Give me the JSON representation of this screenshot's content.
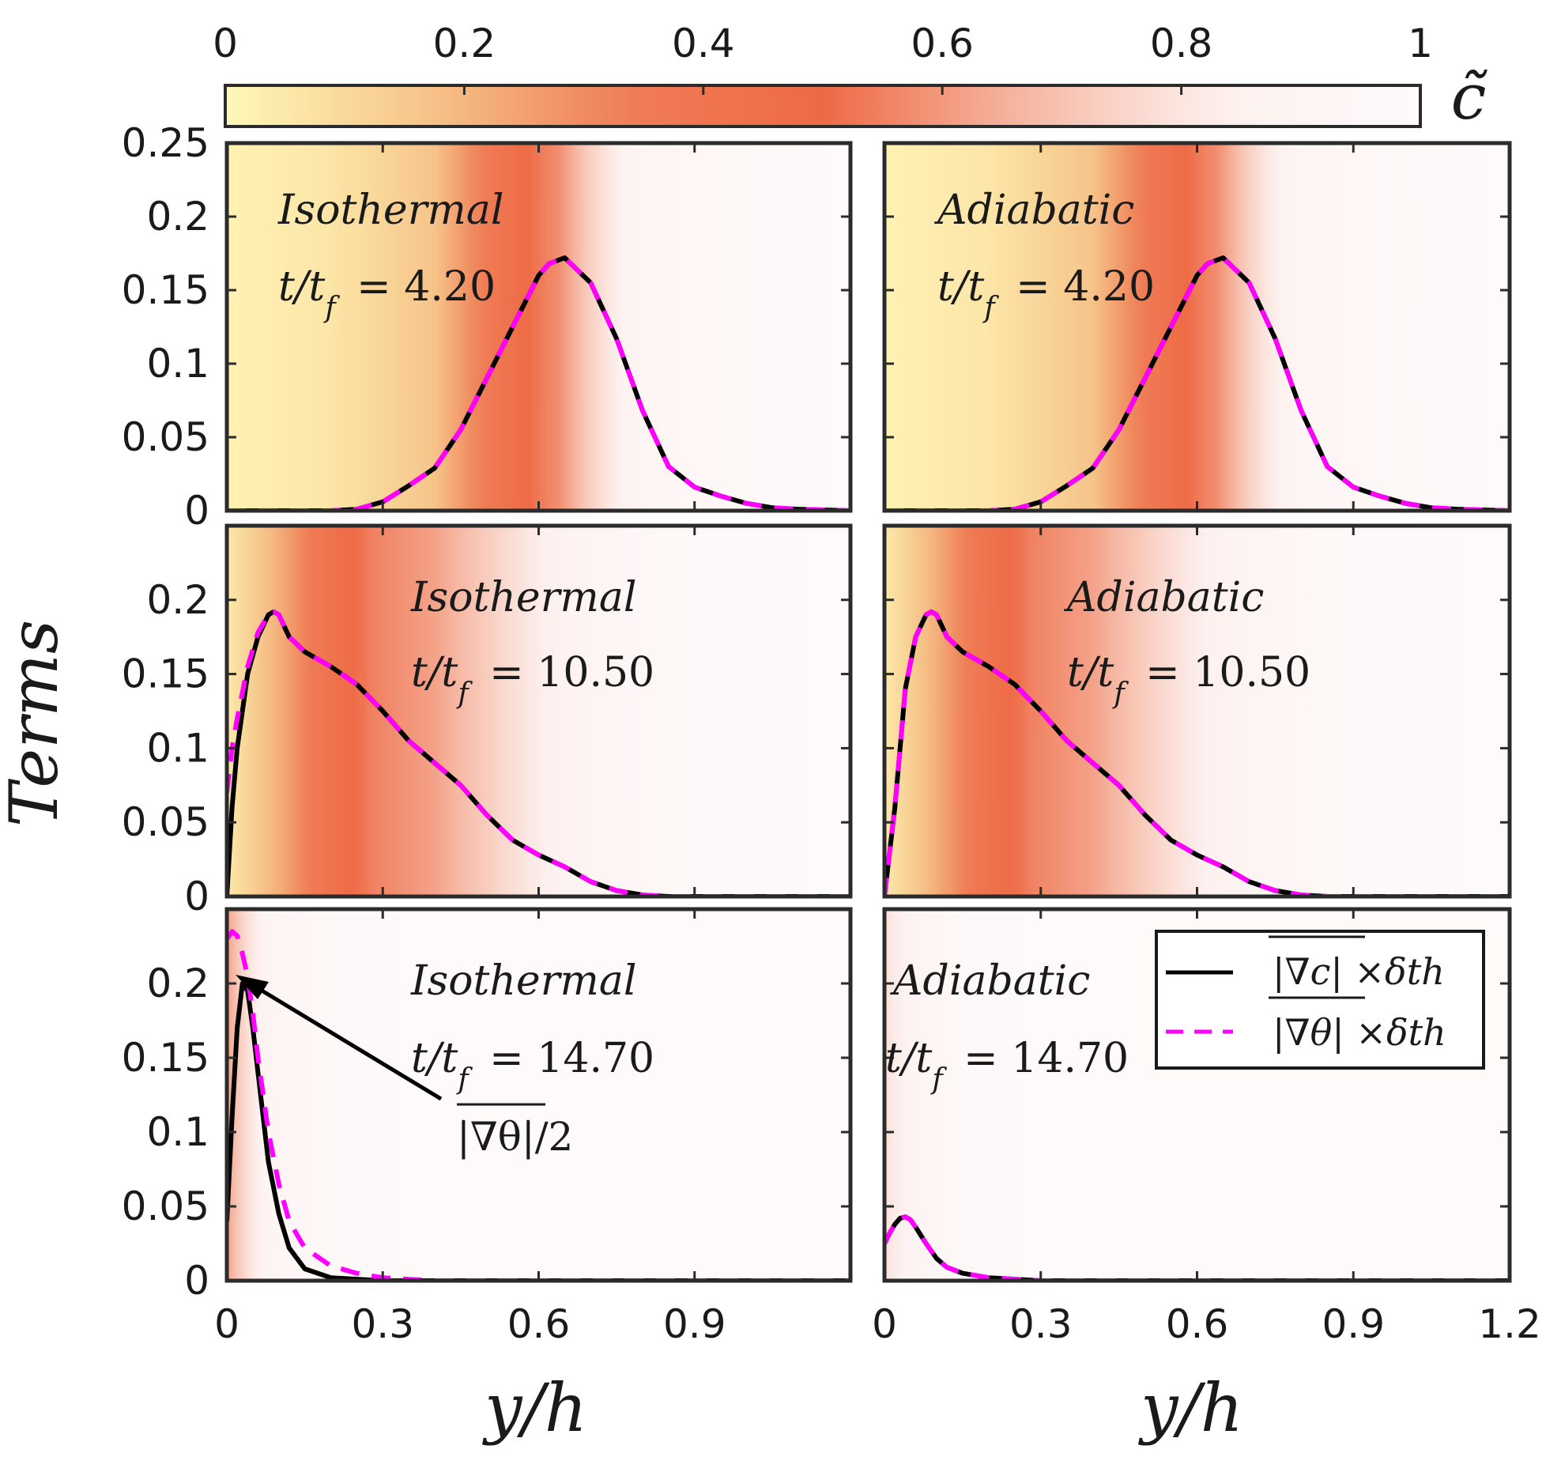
{
  "chart_data": {
    "type": "line",
    "colorbar": {
      "label": "c̃",
      "ticks": [
        "0",
        "0.2",
        "0.4",
        "0.6",
        "0.8",
        "1"
      ],
      "range": [
        0,
        1
      ],
      "colors": [
        "#fff8b8",
        "#f6c58a",
        "#ef7d56",
        "#ee6a45",
        "#f6b8a3",
        "#fdf1ef",
        "#fefafa"
      ]
    },
    "ylabel": "Terms",
    "xlabel": "y/h",
    "xlim": [
      0,
      1.2
    ],
    "ylim": [
      0,
      0.25
    ],
    "x_ticks": [
      "0",
      "0.3",
      "0.6",
      "0.9",
      "1.2"
    ],
    "x_ticks_left": [
      "0",
      "0.3",
      "0.6",
      "0.9"
    ],
    "y_ticks_top": [
      "0",
      "0.05",
      "0.1",
      "0.15",
      "0.2",
      "0.25"
    ],
    "y_ticks": [
      "0",
      "0.05",
      "0.1",
      "0.15",
      "0.2"
    ],
    "legend": {
      "placement": "top-right of bottom-right panel",
      "entries": [
        {
          "label": "|∇c| ×δth",
          "color": "#000000",
          "style": "solid"
        },
        {
          "label": "|∇θ| ×δth",
          "color": "#ff00ff",
          "style": "dashed"
        }
      ]
    },
    "annotation": {
      "text": "|∇θ|/2",
      "x": 0.03,
      "y": 0.205,
      "panel": "iso3"
    },
    "panels": [
      {
        "id": "iso1",
        "case": "Isothermal",
        "time_label": "t/t",
        "time_sub": "f",
        "time_value": "= 4.20",
        "background_c": [
          [
            0,
            0.02
          ],
          [
            0.2,
            0.06
          ],
          [
            0.4,
            0.17
          ],
          [
            0.5,
            0.35
          ],
          [
            0.6,
            0.53
          ],
          [
            0.64,
            0.58
          ],
          [
            0.7,
            0.74
          ],
          [
            0.8,
            0.92
          ],
          [
            1.2,
            1.0
          ]
        ],
        "series": [
          {
            "name": "|∇c| ×δth",
            "color": "#000000",
            "style": "solid",
            "x": [
              0,
              0.1,
              0.2,
              0.25,
              0.3,
              0.35,
              0.4,
              0.45,
              0.5,
              0.55,
              0.6,
              0.62,
              0.65,
              0.7,
              0.75,
              0.8,
              0.85,
              0.9,
              0.95,
              1.0,
              1.05,
              1.1,
              1.2
            ],
            "y": [
              0,
              0,
              0,
              0.001,
              0.006,
              0.017,
              0.029,
              0.055,
              0.09,
              0.125,
              0.16,
              0.168,
              0.172,
              0.155,
              0.117,
              0.068,
              0.03,
              0.016,
              0.01,
              0.005,
              0.002,
              0.001,
              0
            ]
          },
          {
            "name": "|∇θ| ×δth",
            "color": "#ff00ff",
            "style": "dashed",
            "x": [
              0,
              0.1,
              0.2,
              0.25,
              0.3,
              0.35,
              0.4,
              0.45,
              0.5,
              0.55,
              0.6,
              0.62,
              0.65,
              0.7,
              0.75,
              0.8,
              0.85,
              0.9,
              0.95,
              1.0,
              1.05,
              1.1,
              1.2
            ],
            "y": [
              0,
              0,
              0,
              0.001,
              0.006,
              0.017,
              0.029,
              0.055,
              0.09,
              0.125,
              0.16,
              0.168,
              0.172,
              0.155,
              0.117,
              0.068,
              0.03,
              0.016,
              0.01,
              0.005,
              0.002,
              0.001,
              0
            ]
          }
        ]
      },
      {
        "id": "adi1",
        "case": "Adiabatic",
        "time_label": "t/t",
        "time_sub": "f",
        "time_value": "= 4.20",
        "background_c": [
          [
            0,
            0.02
          ],
          [
            0.2,
            0.06
          ],
          [
            0.4,
            0.17
          ],
          [
            0.5,
            0.35
          ],
          [
            0.6,
            0.53
          ],
          [
            0.64,
            0.58
          ],
          [
            0.7,
            0.74
          ],
          [
            0.8,
            0.92
          ],
          [
            1.2,
            1.0
          ]
        ],
        "series": [
          {
            "name": "|∇c| ×δth",
            "color": "#000000",
            "style": "solid",
            "x": [
              0,
              0.1,
              0.2,
              0.25,
              0.3,
              0.35,
              0.4,
              0.45,
              0.5,
              0.55,
              0.6,
              0.62,
              0.65,
              0.7,
              0.75,
              0.8,
              0.85,
              0.9,
              0.95,
              1.0,
              1.05,
              1.1,
              1.2
            ],
            "y": [
              0,
              0,
              0,
              0.001,
              0.006,
              0.017,
              0.029,
              0.055,
              0.09,
              0.125,
              0.16,
              0.168,
              0.172,
              0.155,
              0.117,
              0.068,
              0.03,
              0.016,
              0.01,
              0.005,
              0.002,
              0.001,
              0
            ]
          },
          {
            "name": "|∇θ| ×δth",
            "color": "#ff00ff",
            "style": "dashed",
            "x": [
              0,
              0.1,
              0.2,
              0.25,
              0.3,
              0.35,
              0.4,
              0.45,
              0.5,
              0.55,
              0.6,
              0.62,
              0.65,
              0.7,
              0.75,
              0.8,
              0.85,
              0.9,
              0.95,
              1.0,
              1.05,
              1.1,
              1.2
            ],
            "y": [
              0,
              0,
              0,
              0.001,
              0.006,
              0.017,
              0.029,
              0.055,
              0.09,
              0.125,
              0.16,
              0.168,
              0.172,
              0.155,
              0.117,
              0.068,
              0.03,
              0.016,
              0.01,
              0.005,
              0.002,
              0.001,
              0
            ]
          }
        ]
      },
      {
        "id": "iso2",
        "case": "Isothermal",
        "time_label": "t/t",
        "time_sub": "f",
        "time_value": "= 10.50",
        "background_c": [
          [
            0,
            0.05
          ],
          [
            0.1,
            0.22
          ],
          [
            0.2,
            0.42
          ],
          [
            0.28,
            0.55
          ],
          [
            0.4,
            0.62
          ],
          [
            0.55,
            0.78
          ],
          [
            0.7,
            0.9
          ],
          [
            0.85,
            0.96
          ],
          [
            1.2,
            1.0
          ]
        ],
        "series": [
          {
            "name": "|∇c| ×δth",
            "color": "#000000",
            "style": "solid",
            "x": [
              0,
              0.01,
              0.02,
              0.04,
              0.06,
              0.08,
              0.09,
              0.1,
              0.12,
              0.15,
              0.2,
              0.25,
              0.3,
              0.35,
              0.4,
              0.45,
              0.5,
              0.55,
              0.6,
              0.65,
              0.7,
              0.75,
              0.8,
              0.85,
              0.9,
              1.0,
              1.2
            ],
            "y": [
              0,
              0.06,
              0.1,
              0.15,
              0.175,
              0.19,
              0.192,
              0.19,
              0.175,
              0.165,
              0.155,
              0.143,
              0.125,
              0.105,
              0.09,
              0.075,
              0.055,
              0.038,
              0.028,
              0.02,
              0.01,
              0.004,
              0.001,
              0,
              0,
              0,
              0
            ]
          },
          {
            "name": "|∇θ| ×δth",
            "color": "#ff00ff",
            "style": "dashed",
            "x": [
              0,
              0.01,
              0.02,
              0.04,
              0.06,
              0.08,
              0.09,
              0.1,
              0.12,
              0.15,
              0.2,
              0.25,
              0.3,
              0.35,
              0.4,
              0.45,
              0.5,
              0.55,
              0.6,
              0.65,
              0.7,
              0.75,
              0.8,
              0.85,
              0.9,
              1.0,
              1.2
            ],
            "y": [
              0.07,
              0.1,
              0.12,
              0.155,
              0.178,
              0.19,
              0.192,
              0.19,
              0.175,
              0.165,
              0.155,
              0.143,
              0.125,
              0.105,
              0.09,
              0.075,
              0.055,
              0.038,
              0.028,
              0.02,
              0.01,
              0.004,
              0.001,
              0,
              0,
              0,
              0
            ]
          }
        ]
      },
      {
        "id": "adi2",
        "case": "Adiabatic",
        "time_label": "t/t",
        "time_sub": "f",
        "time_value": "= 10.50",
        "background_c": [
          [
            0,
            0.05
          ],
          [
            0.1,
            0.22
          ],
          [
            0.2,
            0.42
          ],
          [
            0.28,
            0.55
          ],
          [
            0.4,
            0.62
          ],
          [
            0.55,
            0.78
          ],
          [
            0.7,
            0.9
          ],
          [
            0.85,
            0.96
          ],
          [
            1.2,
            1.0
          ]
        ],
        "series": [
          {
            "name": "|∇c| ×δth",
            "color": "#000000",
            "style": "solid",
            "x": [
              0,
              0.01,
              0.02,
              0.04,
              0.06,
              0.08,
              0.09,
              0.1,
              0.12,
              0.15,
              0.2,
              0.25,
              0.3,
              0.35,
              0.4,
              0.45,
              0.5,
              0.55,
              0.6,
              0.65,
              0.7,
              0.75,
              0.8,
              0.85,
              0.9,
              1.0,
              1.2
            ],
            "y": [
              0,
              0.03,
              0.06,
              0.14,
              0.175,
              0.19,
              0.192,
              0.19,
              0.175,
              0.165,
              0.155,
              0.143,
              0.125,
              0.105,
              0.09,
              0.075,
              0.055,
              0.038,
              0.028,
              0.02,
              0.01,
              0.004,
              0.001,
              0,
              0,
              0,
              0
            ]
          },
          {
            "name": "|∇θ| ×δth",
            "color": "#ff00ff",
            "style": "dashed",
            "x": [
              0,
              0.01,
              0.02,
              0.04,
              0.06,
              0.08,
              0.09,
              0.1,
              0.12,
              0.15,
              0.2,
              0.25,
              0.3,
              0.35,
              0.4,
              0.45,
              0.5,
              0.55,
              0.6,
              0.65,
              0.7,
              0.75,
              0.8,
              0.85,
              0.9,
              1.0,
              1.2
            ],
            "y": [
              0,
              0.03,
              0.06,
              0.14,
              0.175,
              0.19,
              0.192,
              0.19,
              0.175,
              0.165,
              0.155,
              0.143,
              0.125,
              0.105,
              0.09,
              0.075,
              0.055,
              0.038,
              0.028,
              0.02,
              0.01,
              0.004,
              0.001,
              0,
              0,
              0,
              0
            ]
          }
        ]
      },
      {
        "id": "iso3",
        "case": "Isothermal",
        "time_label": "t/t",
        "time_sub": "f",
        "time_value": "= 14.70",
        "background_c": [
          [
            0,
            0.62
          ],
          [
            0.03,
            0.75
          ],
          [
            0.08,
            0.9
          ],
          [
            0.2,
            0.97
          ],
          [
            0.4,
            1.0
          ],
          [
            1.2,
            1.0
          ]
        ],
        "series": [
          {
            "name": "|∇c| ×δth",
            "color": "#000000",
            "style": "solid",
            "x": [
              0,
              0.01,
              0.02,
              0.03,
              0.04,
              0.05,
              0.06,
              0.08,
              0.1,
              0.12,
              0.15,
              0.2,
              0.25,
              0.3,
              0.4,
              1.2
            ],
            "y": [
              0.04,
              0.11,
              0.17,
              0.2,
              0.195,
              0.17,
              0.14,
              0.08,
              0.045,
              0.022,
              0.008,
              0.002,
              0.001,
              0,
              0,
              0
            ]
          },
          {
            "name": "|∇θ| ×δth",
            "color": "#ff00ff",
            "style": "dashed",
            "x": [
              0,
              0.01,
              0.02,
              0.03,
              0.04,
              0.05,
              0.06,
              0.08,
              0.1,
              0.12,
              0.15,
              0.2,
              0.25,
              0.3,
              0.35,
              0.4,
              0.5,
              1.2
            ],
            "y": [
              0.23,
              0.235,
              0.232,
              0.22,
              0.205,
              0.18,
              0.15,
              0.1,
              0.065,
              0.04,
              0.022,
              0.01,
              0.005,
              0.002,
              0.001,
              0,
              0,
              0
            ]
          }
        ]
      },
      {
        "id": "adi3",
        "case": "Adiabatic",
        "time_label": "t/t",
        "time_sub": "f",
        "time_value": "= 14.70",
        "background_c": [
          [
            0,
            0.78
          ],
          [
            0.05,
            0.88
          ],
          [
            0.15,
            0.96
          ],
          [
            0.3,
            1.0
          ],
          [
            1.2,
            1.0
          ]
        ],
        "series": [
          {
            "name": "|∇c| ×δth",
            "color": "#000000",
            "style": "solid",
            "x": [
              0,
              0.01,
              0.02,
              0.03,
              0.04,
              0.05,
              0.06,
              0.08,
              0.1,
              0.12,
              0.15,
              0.2,
              0.25,
              0.3,
              0.4,
              0.5,
              1.2
            ],
            "y": [
              0.025,
              0.032,
              0.038,
              0.042,
              0.043,
              0.041,
              0.036,
              0.025,
              0.015,
              0.009,
              0.005,
              0.002,
              0.001,
              0,
              0,
              0,
              0
            ]
          },
          {
            "name": "|∇θ| ×δth",
            "color": "#ff00ff",
            "style": "dashed",
            "x": [
              0,
              0.01,
              0.02,
              0.03,
              0.04,
              0.05,
              0.06,
              0.08,
              0.1,
              0.12,
              0.15,
              0.2,
              0.25,
              0.3,
              0.4,
              0.5,
              1.2
            ],
            "y": [
              0.025,
              0.032,
              0.038,
              0.042,
              0.043,
              0.041,
              0.036,
              0.025,
              0.015,
              0.009,
              0.005,
              0.002,
              0.001,
              0,
              0,
              0,
              0
            ]
          }
        ]
      }
    ]
  }
}
